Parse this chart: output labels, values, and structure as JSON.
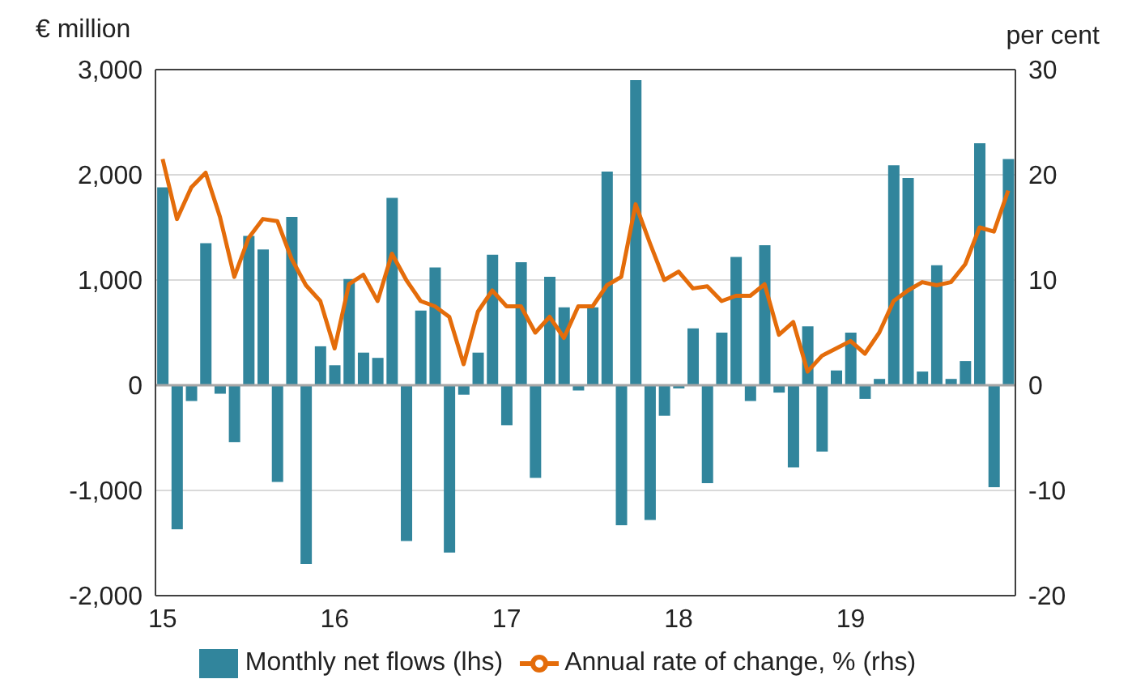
{
  "chart_data": {
    "type": "bar",
    "ylabel": "€ million",
    "y2label": "per cent",
    "categories": [
      "15",
      null,
      null,
      null,
      null,
      null,
      null,
      null,
      null,
      null,
      null,
      null,
      "16",
      null,
      null,
      null,
      null,
      null,
      null,
      null,
      null,
      null,
      null,
      null,
      "17",
      null,
      null,
      null,
      null,
      null,
      null,
      null,
      null,
      null,
      null,
      null,
      "18",
      null,
      null,
      null,
      null,
      null,
      null,
      null,
      null,
      null,
      null,
      null,
      "19",
      null,
      null,
      null,
      null,
      null,
      null,
      null,
      null,
      null,
      null,
      null
    ],
    "series": [
      {
        "name": "Monthly net flows (lhs)",
        "color": "#31859c",
        "values": [
          1880,
          -1370,
          -150,
          1350,
          -80,
          -540,
          1420,
          1290,
          -920,
          1600,
          -1700,
          370,
          190,
          1010,
          310,
          260,
          1780,
          -1480,
          710,
          1120,
          -1590,
          -90,
          310,
          1240,
          -380,
          1170,
          -880,
          1030,
          740,
          -50,
          740,
          2030,
          -1330,
          2900,
          -1280,
          -290,
          -30,
          540,
          -930,
          500,
          1220,
          -150,
          1330,
          -70,
          -780,
          560,
          -630,
          140,
          500,
          -130,
          60,
          2090,
          1970,
          130,
          1140,
          60,
          230,
          2300,
          -970,
          2150
        ]
      },
      {
        "name": "Annual rate of change, % (rhs)",
        "type": "line",
        "axis": "y2",
        "color": "#e46c0a",
        "values": [
          21.5,
          15.8,
          18.8,
          20.2,
          16,
          10.3,
          14,
          15.8,
          15.6,
          12,
          9.5,
          8,
          3.5,
          9.6,
          10.5,
          8,
          12.5,
          10,
          8,
          7.5,
          6.5,
          2,
          7,
          9,
          7.5,
          7.5,
          5,
          6.5,
          4.5,
          7.5,
          7.5,
          9.5,
          10.3,
          17.2,
          13.5,
          10,
          10.8,
          9.2,
          9.4,
          8,
          8.5,
          8.5,
          9.6,
          4.8,
          6,
          1.3,
          2.8,
          3.5,
          4.2,
          3,
          5,
          8,
          9,
          9.8,
          9.5,
          9.8,
          11.5,
          15,
          14.6,
          18.5
        ]
      }
    ],
    "ylim": [
      -2000,
      3000
    ],
    "yticks": [
      {
        "value": -2000,
        "label": "-2,000"
      },
      {
        "value": -1000,
        "label": "-1,000"
      },
      0,
      {
        "value": 1000,
        "label": "1,000"
      },
      {
        "value": 2000,
        "label": "2,000"
      },
      {
        "value": 3000,
        "label": "3,000"
      }
    ],
    "y2lim": [
      -20,
      30
    ],
    "y2ticks": [
      -20,
      -10,
      0,
      10,
      20,
      30
    ],
    "grid": "y",
    "legend": "bottom",
    "marker": "none",
    "line_style": "solid"
  }
}
